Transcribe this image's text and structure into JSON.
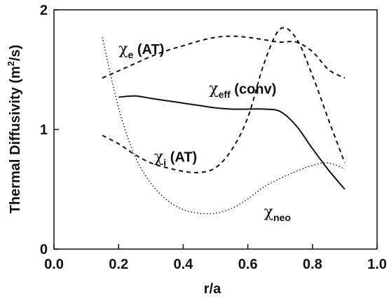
{
  "chart_data": {
    "type": "line",
    "xlabel": "r/a",
    "ylabel": "Thermal Diffusivity (m²/s)",
    "ylabel_parts": {
      "pre": "Thermal Diffusivity (m",
      "sup": "2",
      "post": "/s)"
    },
    "xlim": [
      0.0,
      1.0
    ],
    "ylim": [
      0,
      2
    ],
    "x_ticks": [
      0.0,
      0.2,
      0.4,
      0.6,
      0.8,
      1.0
    ],
    "x_tick_labels": [
      "0.0",
      "0.2",
      "0.4",
      "0.6",
      "0.8",
      "1.0"
    ],
    "y_ticks": [
      0,
      1,
      2
    ],
    "y_tick_labels": [
      "0",
      "1",
      "2"
    ],
    "grid": false,
    "series": [
      {
        "id": "chi_e_at",
        "label_greek": "χ",
        "label_sub": "e",
        "label_tail": " (AT)",
        "style": "dashed",
        "color": "#111111",
        "x": [
          0.15,
          0.2,
          0.25,
          0.3,
          0.35,
          0.4,
          0.45,
          0.5,
          0.55,
          0.6,
          0.65,
          0.7,
          0.75,
          0.8,
          0.85,
          0.9
        ],
        "y": [
          1.43,
          1.49,
          1.55,
          1.61,
          1.66,
          1.7,
          1.74,
          1.77,
          1.78,
          1.77,
          1.75,
          1.73,
          1.73,
          1.65,
          1.5,
          1.43
        ]
      },
      {
        "id": "chi_eff_conv",
        "label_greek": "χ",
        "label_sub": "eff",
        "label_tail": " (conv)",
        "style": "solid",
        "color": "#111111",
        "x": [
          0.2,
          0.25,
          0.3,
          0.35,
          0.4,
          0.45,
          0.5,
          0.55,
          0.6,
          0.65,
          0.7,
          0.75,
          0.8,
          0.85,
          0.9
        ],
        "y": [
          1.27,
          1.28,
          1.26,
          1.24,
          1.22,
          1.2,
          1.18,
          1.17,
          1.17,
          1.17,
          1.15,
          1.03,
          0.84,
          0.66,
          0.5
        ]
      },
      {
        "id": "chi_i_at",
        "label_greek": "χ",
        "label_sub": "i",
        "label_tail": " (AT)",
        "style": "dashed",
        "color": "#111111",
        "x": [
          0.15,
          0.2,
          0.25,
          0.3,
          0.35,
          0.4,
          0.45,
          0.5,
          0.55,
          0.6,
          0.65,
          0.7,
          0.75,
          0.8,
          0.85,
          0.9
        ],
        "y": [
          0.95,
          0.88,
          0.79,
          0.72,
          0.68,
          0.65,
          0.64,
          0.68,
          0.83,
          1.1,
          1.55,
          1.84,
          1.76,
          1.45,
          1.08,
          0.72
        ]
      },
      {
        "id": "chi_neo",
        "label_greek": "χ",
        "label_sub": "neo",
        "label_tail": "",
        "style": "dotted",
        "color": "#111111",
        "x": [
          0.15,
          0.2,
          0.25,
          0.3,
          0.35,
          0.4,
          0.45,
          0.5,
          0.55,
          0.6,
          0.65,
          0.7,
          0.75,
          0.8,
          0.85,
          0.9
        ],
        "y": [
          1.77,
          1.18,
          0.78,
          0.55,
          0.41,
          0.33,
          0.3,
          0.3,
          0.34,
          0.42,
          0.52,
          0.59,
          0.65,
          0.7,
          0.72,
          0.67
        ]
      }
    ],
    "series_labels": [
      {
        "series": "chi_e_at",
        "x": 0.2,
        "y": 1.63
      },
      {
        "series": "chi_eff_conv",
        "x": 0.48,
        "y": 1.3
      },
      {
        "series": "chi_i_at",
        "x": 0.31,
        "y": 0.73
      },
      {
        "series": "chi_neo",
        "x": 0.65,
        "y": 0.27
      }
    ]
  }
}
